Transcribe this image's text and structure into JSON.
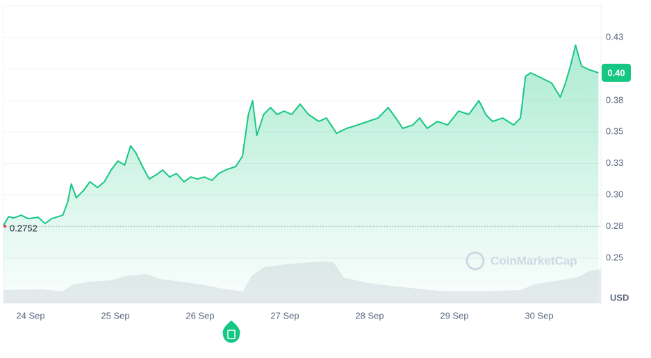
{
  "chart_data": {
    "type": "line",
    "y_axis_label": "USD",
    "watermark": "CoinMarketCap",
    "x": [
      23.68,
      23.74,
      23.8,
      23.89,
      23.97,
      24.09,
      24.17,
      24.25,
      24.38,
      24.44,
      24.48,
      24.54,
      24.62,
      24.7,
      24.79,
      24.87,
      24.95,
      25.03,
      25.11,
      25.18,
      25.24,
      25.32,
      25.4,
      25.48,
      25.56,
      25.64,
      25.72,
      25.81,
      25.89,
      25.97,
      26.05,
      26.14,
      26.22,
      26.3,
      26.42,
      26.5,
      26.57,
      26.62,
      26.67,
      26.75,
      26.83,
      26.91,
      26.99,
      27.08,
      27.18,
      27.28,
      27.4,
      27.49,
      27.61,
      27.73,
      27.86,
      27.98,
      28.1,
      28.22,
      28.31,
      28.39,
      28.51,
      28.59,
      28.68,
      28.8,
      28.92,
      29.05,
      29.17,
      29.29,
      29.37,
      29.45,
      29.57,
      29.7,
      29.78,
      29.84,
      29.9,
      30.02,
      30.15,
      30.25,
      30.31,
      30.37,
      30.43,
      30.5,
      30.58,
      30.7
    ],
    "series": [
      {
        "color": "#16c784",
        "values": [
          0.2758,
          0.2829,
          0.2818,
          0.284,
          0.2813,
          0.2824,
          0.2774,
          0.2813,
          0.284,
          0.295,
          0.3088,
          0.2978,
          0.3033,
          0.3105,
          0.306,
          0.3105,
          0.3198,
          0.327,
          0.3237,
          0.3391,
          0.3336,
          0.3226,
          0.3127,
          0.316,
          0.3198,
          0.3143,
          0.3171,
          0.3105,
          0.3143,
          0.3127,
          0.3143,
          0.3116,
          0.3171,
          0.3198,
          0.3226,
          0.3308,
          0.3639,
          0.3749,
          0.3474,
          0.3639,
          0.3694,
          0.3639,
          0.3666,
          0.3639,
          0.3721,
          0.3639,
          0.3584,
          0.3611,
          0.349,
          0.3529,
          0.3556,
          0.3584,
          0.3611,
          0.3694,
          0.3611,
          0.3529,
          0.3556,
          0.3611,
          0.3529,
          0.3584,
          0.3556,
          0.3666,
          0.3639,
          0.3749,
          0.3639,
          0.3584,
          0.3611,
          0.3556,
          0.3611,
          0.3942,
          0.3969,
          0.3931,
          0.3887,
          0.3776,
          0.3887,
          0.4024,
          0.4189,
          0.4024,
          0.3997,
          0.3969
        ]
      }
    ],
    "xlim": [
      23.68,
      30.73
    ],
    "xticks": [
      {
        "value": 24,
        "label": "24 Sep"
      },
      {
        "value": 25,
        "label": "25 Sep"
      },
      {
        "value": 26,
        "label": "26 Sep"
      },
      {
        "value": 27,
        "label": "27 Sep"
      },
      {
        "value": 28,
        "label": "28 Sep"
      },
      {
        "value": 29,
        "label": "29 Sep"
      },
      {
        "value": 30,
        "label": "30 Sep"
      }
    ],
    "ylim": [
      0.2142,
      0.4503
    ],
    "yticks": [
      {
        "value": 0.425,
        "label": "0.43"
      },
      {
        "value": 0.4,
        "label": "0.40"
      },
      {
        "value": 0.375,
        "label": "0.38"
      },
      {
        "value": 0.35,
        "label": "0.35"
      },
      {
        "value": 0.325,
        "label": "0.33"
      },
      {
        "value": 0.3,
        "label": "0.30"
      },
      {
        "value": 0.275,
        "label": "0.28"
      },
      {
        "value": 0.25,
        "label": "0.25"
      }
    ],
    "reference_line": {
      "value": 0.2752,
      "label": "0.2752"
    },
    "current_price": {
      "value": 0.397,
      "label": "0.40"
    },
    "grid": true
  }
}
